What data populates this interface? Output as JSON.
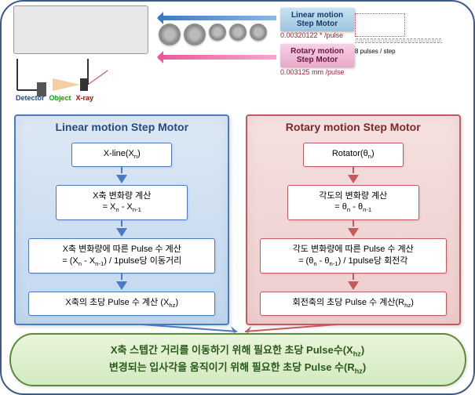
{
  "header": {
    "linear_motor_label": "Linear motion\nStep Motor",
    "rotary_motor_label": "Rotary motion\nStep Motor",
    "linear_value": "0.00320122 * /pulse",
    "rotary_value": "0.003125 mm /pulse",
    "pulse_label": "8 pulses / step",
    "detector": "Detector",
    "object": "Object",
    "xray": "X-ray"
  },
  "panels": {
    "left": {
      "title": "Linear motion Step Motor",
      "box1": "X-line(Xₙ)",
      "box2": "X축 변화량 계산\n= Xₙ - Xₙ₋₁",
      "box3": "X축 변화량에 따른 Pulse 수 계산\n= (Xₙ - Xₙ₋₁) / 1pulse당 이동거리",
      "box4": "X축의 초당 Pulse 수 계산 (Xₕz)"
    },
    "right": {
      "title": "Rotary motion Step Motor",
      "box1": "Rotator(θₙ)",
      "box2": "각도의 변화량 계산\n= θₙ - θₙ₋₁",
      "box3": "각도 변화량에 따른 Pulse 수 계산\n= (θₙ - θₙ₋₁) / 1pulse당 회전각",
      "box4": "회전축의 초당 Pulse 수 계산(Rₕz)"
    }
  },
  "bottom": {
    "line1": "X축 스텝간 거리를 이동하기 위해 필요한 초당 Pulse수(Xₕz)",
    "line2": "변경되는 입사각을 움직이기 위해 필요한 초당 Pulse 수(Rₕz)"
  },
  "colors": {
    "blue_panel": "#4a7abf",
    "red_panel": "#c45a5a",
    "green_oval": "#5a8a3a",
    "arrow_blue": "#3a7bc4",
    "arrow_pink": "#e85a9e"
  }
}
